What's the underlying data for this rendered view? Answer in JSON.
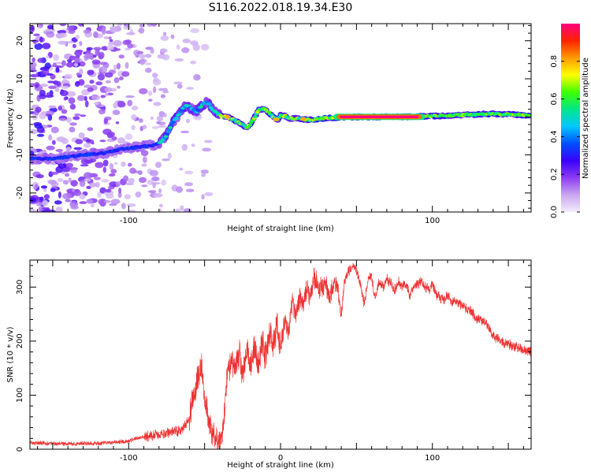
{
  "title": "S116.2022.018.19.34.E30",
  "chart_data": [
    {
      "type": "heatmap",
      "title": "S116.2022.018.19.34.E30",
      "xlabel": "Height of straight line (km)",
      "ylabel": "Frequency (Hz)",
      "xlim": [
        -165,
        165
      ],
      "ylim": [
        -25,
        24.5
      ],
      "x_ticks": [
        -100,
        100
      ],
      "y_ticks": [
        -20,
        -10,
        0,
        10,
        20
      ],
      "colorbar": {
        "label": "Normalized spectral amplitude",
        "range": [
          0,
          1
        ],
        "ticks": [
          0.0,
          0.2,
          0.4,
          0.6,
          0.8
        ],
        "colormap": [
          "#f3ecfb",
          "#c9a6f0",
          "#8c3cf0",
          "#3a00ff",
          "#0050ff",
          "#00c8ff",
          "#00e888",
          "#40ff00",
          "#ffff00",
          "#ff9a00",
          "#ff2200",
          "#ff0080"
        ]
      },
      "ridge": {
        "x": [
          -165,
          -150,
          -130,
          -115,
          -105,
          -95,
          -85,
          -80,
          -75,
          -72,
          -68,
          -65,
          -62,
          -58,
          -55,
          -52,
          -48,
          -45,
          -42,
          -38,
          -35,
          -30,
          -25,
          -22,
          -20,
          -17,
          -14,
          -10,
          -5,
          -2,
          0,
          3,
          6,
          10,
          15,
          20,
          25,
          30,
          40,
          50,
          60,
          80,
          100,
          120,
          140,
          160,
          165
        ],
        "y": [
          -11,
          -11,
          -10,
          -9.5,
          -8.5,
          -8,
          -7.5,
          -7,
          -5,
          -2,
          0,
          2,
          3,
          2,
          1.5,
          3,
          4,
          2,
          1,
          0,
          0,
          -1,
          -2,
          -3,
          -2,
          0,
          2,
          2,
          0,
          -1,
          0.5,
          0.2,
          -0.5,
          -0.4,
          -0.6,
          -0.8,
          -0.5,
          -0.3,
          -0.2,
          0,
          0,
          0,
          0.2,
          0.5,
          0.8,
          0.5,
          0.3
        ]
      },
      "core": {
        "x": [
          38,
          92
        ],
        "y": 0,
        "amplitude": 1.0
      }
    },
    {
      "type": "line",
      "xlabel": "Height of straight line (km)",
      "ylabel": "SNR (10 * v/v)",
      "xlim": [
        -165,
        165
      ],
      "ylim": [
        0,
        350
      ],
      "x_ticks": [
        -100,
        0,
        100
      ],
      "y_ticks": [
        0,
        100,
        200,
        300
      ],
      "line_color": "#ee3333",
      "series": [
        {
          "x": [
            -165,
            -140,
            -120,
            -110,
            -100,
            -95,
            -85,
            -75,
            -65,
            -60,
            -57,
            -55,
            -52,
            -50,
            -47,
            -45,
            -42,
            -40,
            -37,
            -35,
            -32,
            -30,
            -27,
            -25,
            -22,
            -20,
            -17,
            -15,
            -12,
            -10,
            -7,
            -5,
            -2,
            0,
            3,
            5,
            8,
            10,
            13,
            15,
            17,
            20,
            22,
            25,
            27,
            30,
            32,
            35,
            38,
            40,
            42,
            45,
            48,
            50,
            53,
            55,
            58,
            60,
            62,
            65,
            68,
            70,
            73,
            75,
            78,
            80,
            83,
            85,
            88,
            90,
            93,
            95,
            98,
            100,
            103,
            105,
            108,
            110,
            113,
            115,
            120,
            125,
            130,
            135,
            140,
            145,
            150,
            155,
            160,
            165
          ],
          "y": [
            12,
            10,
            11,
            13,
            15,
            20,
            25,
            30,
            35,
            60,
            100,
            130,
            150,
            95,
            45,
            30,
            15,
            12,
            60,
            140,
            165,
            150,
            175,
            140,
            185,
            155,
            195,
            150,
            200,
            170,
            215,
            190,
            230,
            185,
            240,
            220,
            270,
            250,
            285,
            265,
            300,
            280,
            320,
            300,
            300,
            305,
            280,
            310,
            300,
            245,
            310,
            330,
            340,
            330,
            300,
            270,
            315,
            320,
            280,
            310,
            300,
            315,
            305,
            295,
            310,
            300,
            305,
            285,
            300,
            305,
            310,
            300,
            295,
            305,
            285,
            280,
            275,
            285,
            270,
            275,
            265,
            255,
            240,
            235,
            210,
            200,
            195,
            190,
            185,
            180
          ]
        }
      ]
    }
  ]
}
